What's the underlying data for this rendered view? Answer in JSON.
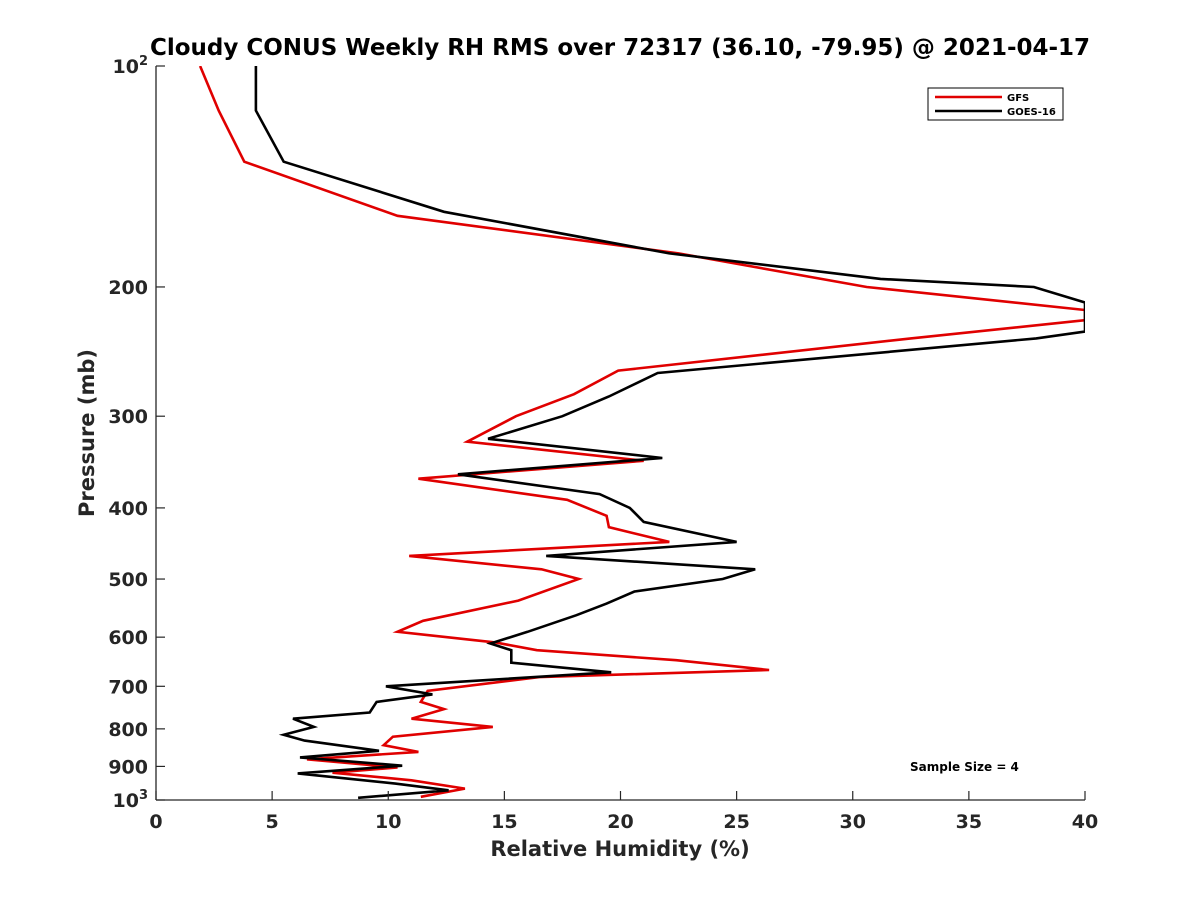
{
  "chart_data": {
    "type": "line",
    "title": "Cloudy CONUS Weekly RH RMS over 72317 (36.10, -79.95) @ 2021-04-17",
    "xlabel": "Relative Humidity (%)",
    "ylabel": "Pressure (mb)",
    "xlim": [
      0,
      40
    ],
    "ylim": [
      100,
      1000
    ],
    "yscale": "log",
    "y_reversed": true,
    "grid": false,
    "legend_position": "top-right",
    "x_ticks": [
      "0",
      "5",
      "10",
      "15",
      "20",
      "25",
      "30",
      "35",
      "40"
    ],
    "y_ticks": [
      {
        "value": 100,
        "base": "10",
        "exp": "2"
      },
      {
        "value": 200,
        "label": "200"
      },
      {
        "value": 300,
        "label": "300"
      },
      {
        "value": 400,
        "label": "400"
      },
      {
        "value": 500,
        "label": "500"
      },
      {
        "value": 600,
        "label": "600"
      },
      {
        "value": 700,
        "label": "700"
      },
      {
        "value": 800,
        "label": "800"
      },
      {
        "value": 900,
        "label": "900"
      },
      {
        "value": 1000,
        "base": "10",
        "exp": "3"
      }
    ],
    "annotation": "Sample Size = 4",
    "series": [
      {
        "name": "GFS",
        "color": "#e00000",
        "points": [
          [
            1.9,
            100
          ],
          [
            2.7,
            115
          ],
          [
            3.8,
            135
          ],
          [
            10.4,
            160
          ],
          [
            22.5,
            180
          ],
          [
            30.6,
            200
          ],
          [
            40.0,
            215
          ],
          [
            40.0,
            222
          ],
          [
            32.5,
            235
          ],
          [
            19.9,
            260
          ],
          [
            18.0,
            280
          ],
          [
            15.5,
            300
          ],
          [
            13.4,
            325
          ],
          [
            21.0,
            345
          ],
          [
            11.3,
            365
          ],
          [
            17.7,
            390
          ],
          [
            19.4,
            410
          ],
          [
            19.5,
            425
          ],
          [
            22.1,
            445
          ],
          [
            10.9,
            465
          ],
          [
            16.6,
            485
          ],
          [
            18.2,
            500
          ],
          [
            15.6,
            535
          ],
          [
            11.5,
            570
          ],
          [
            10.4,
            590
          ],
          [
            14.6,
            610
          ],
          [
            16.4,
            625
          ],
          [
            22.4,
            645
          ],
          [
            26.4,
            665
          ],
          [
            16.5,
            680
          ],
          [
            11.7,
            710
          ],
          [
            11.4,
            735
          ],
          [
            12.4,
            752
          ],
          [
            11.0,
            775
          ],
          [
            14.5,
            795
          ],
          [
            10.2,
            820
          ],
          [
            9.8,
            842
          ],
          [
            11.3,
            860
          ],
          [
            6.5,
            880
          ],
          [
            10.4,
            903
          ],
          [
            7.6,
            918
          ],
          [
            11.0,
            940
          ],
          [
            13.3,
            965
          ],
          [
            11.4,
            990
          ]
        ]
      },
      {
        "name": "GOES-16",
        "color": "#000000",
        "points": [
          [
            4.3,
            100
          ],
          [
            4.3,
            115
          ],
          [
            5.5,
            135
          ],
          [
            12.4,
            158
          ],
          [
            22.1,
            180
          ],
          [
            31.2,
            195
          ],
          [
            37.8,
            200
          ],
          [
            40.0,
            210
          ],
          [
            40.0,
            230
          ],
          [
            37.9,
            235
          ],
          [
            21.6,
            262
          ],
          [
            19.5,
            282
          ],
          [
            17.5,
            300
          ],
          [
            14.3,
            322
          ],
          [
            21.8,
            342
          ],
          [
            13.0,
            360
          ],
          [
            19.1,
            383
          ],
          [
            20.4,
            400
          ],
          [
            21.0,
            418
          ],
          [
            25.0,
            445
          ],
          [
            16.8,
            465
          ],
          [
            25.8,
            485
          ],
          [
            24.4,
            500
          ],
          [
            20.6,
            520
          ],
          [
            19.4,
            540
          ],
          [
            18.1,
            560
          ],
          [
            16.0,
            590
          ],
          [
            14.4,
            612
          ],
          [
            15.3,
            625
          ],
          [
            15.3,
            650
          ],
          [
            19.6,
            670
          ],
          [
            9.9,
            700
          ],
          [
            11.9,
            718
          ],
          [
            9.5,
            735
          ],
          [
            9.2,
            760
          ],
          [
            5.9,
            775
          ],
          [
            6.8,
            795
          ],
          [
            5.5,
            815
          ],
          [
            6.4,
            830
          ],
          [
            9.6,
            857
          ],
          [
            6.2,
            875
          ],
          [
            10.6,
            898
          ],
          [
            6.1,
            920
          ],
          [
            10.3,
            950
          ],
          [
            12.6,
            970
          ],
          [
            8.7,
            993
          ]
        ]
      }
    ]
  }
}
